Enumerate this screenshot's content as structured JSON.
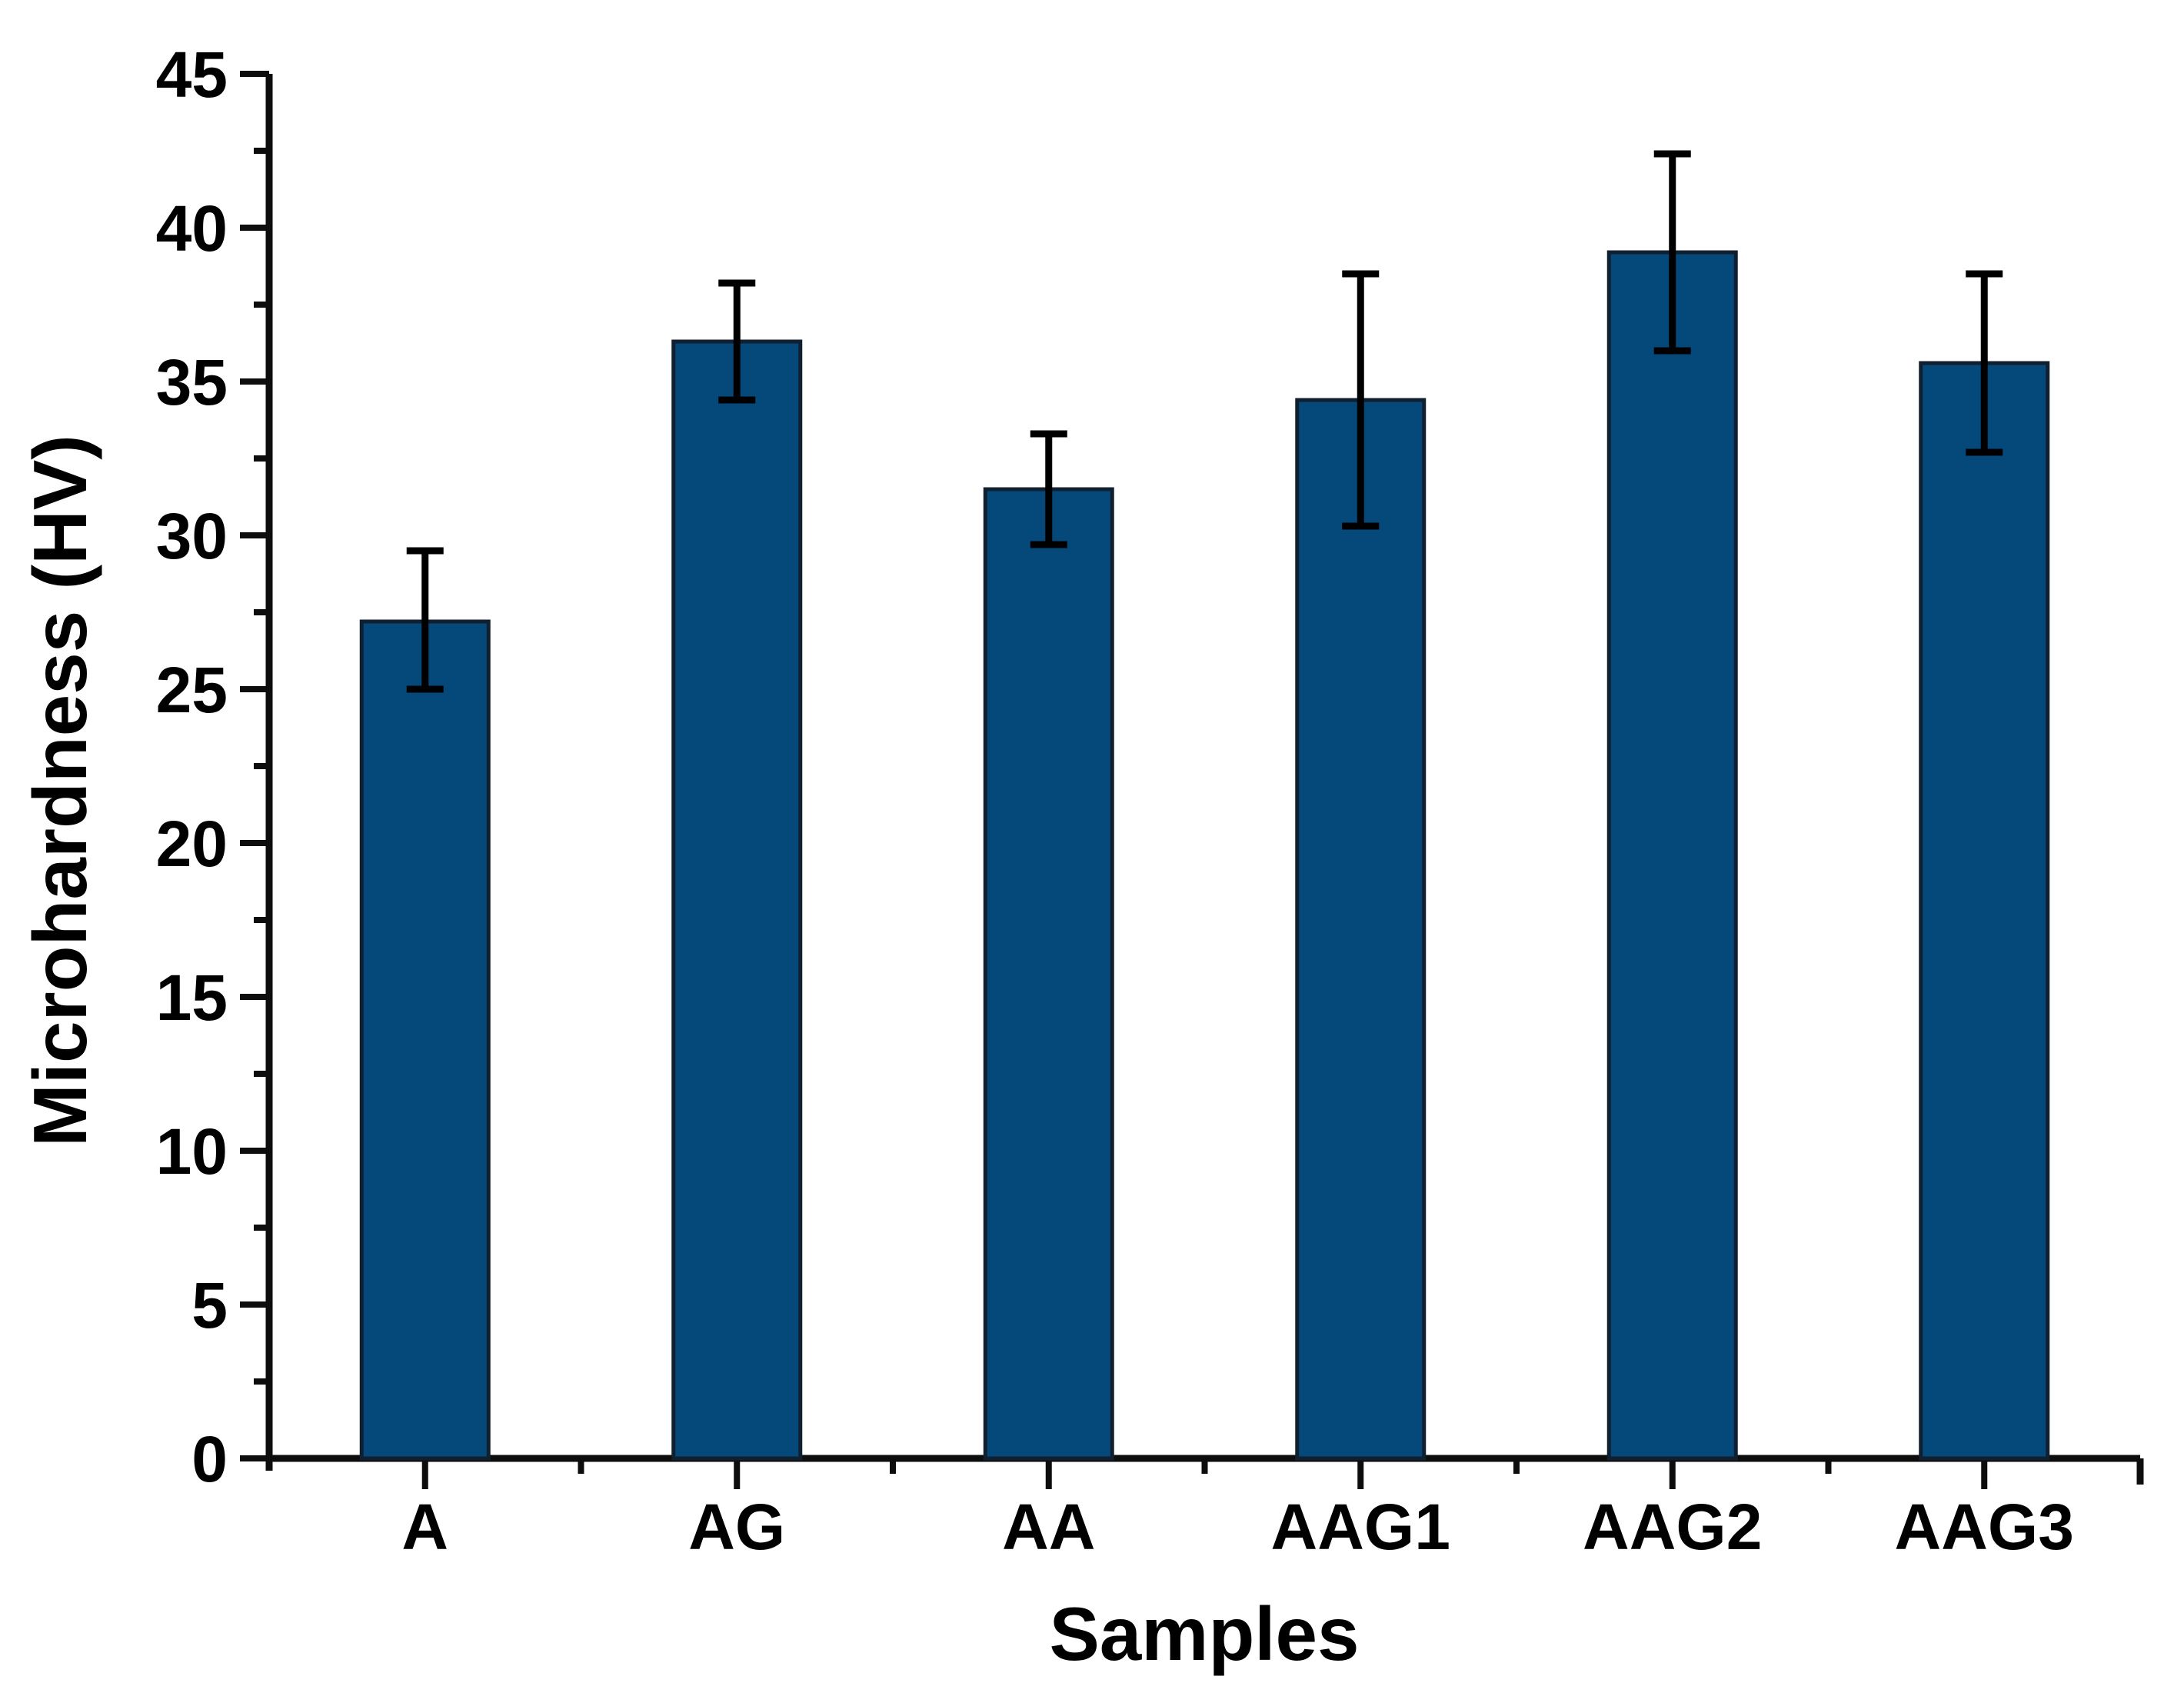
{
  "chart_data": {
    "type": "bar",
    "title": "",
    "xlabel": "Samples",
    "ylabel": "Microhardness (HV)",
    "categories": [
      "A",
      "AG",
      "AA",
      "AAG1",
      "AAG2",
      "AAG3"
    ],
    "values": [
      27.2,
      36.3,
      31.5,
      34.4,
      39.2,
      35.6
    ],
    "error_upper": [
      2.3,
      1.9,
      1.8,
      4.1,
      3.2,
      2.9
    ],
    "error_lower": [
      2.2,
      1.9,
      1.8,
      4.1,
      3.2,
      2.9
    ],
    "ylim": [
      0,
      45
    ],
    "y_major_step": 5,
    "y_minor_step": 2.5,
    "y_tick_labels": [
      "0",
      "5",
      "10",
      "15",
      "20",
      "25",
      "30",
      "35",
      "40",
      "45"
    ],
    "grid": false,
    "legend": "none",
    "bar_color": "#05497B",
    "bar_border_color": "#102030",
    "error_color": "#000000",
    "axis_color": "#0D0D0D",
    "text_color": "#000000"
  }
}
